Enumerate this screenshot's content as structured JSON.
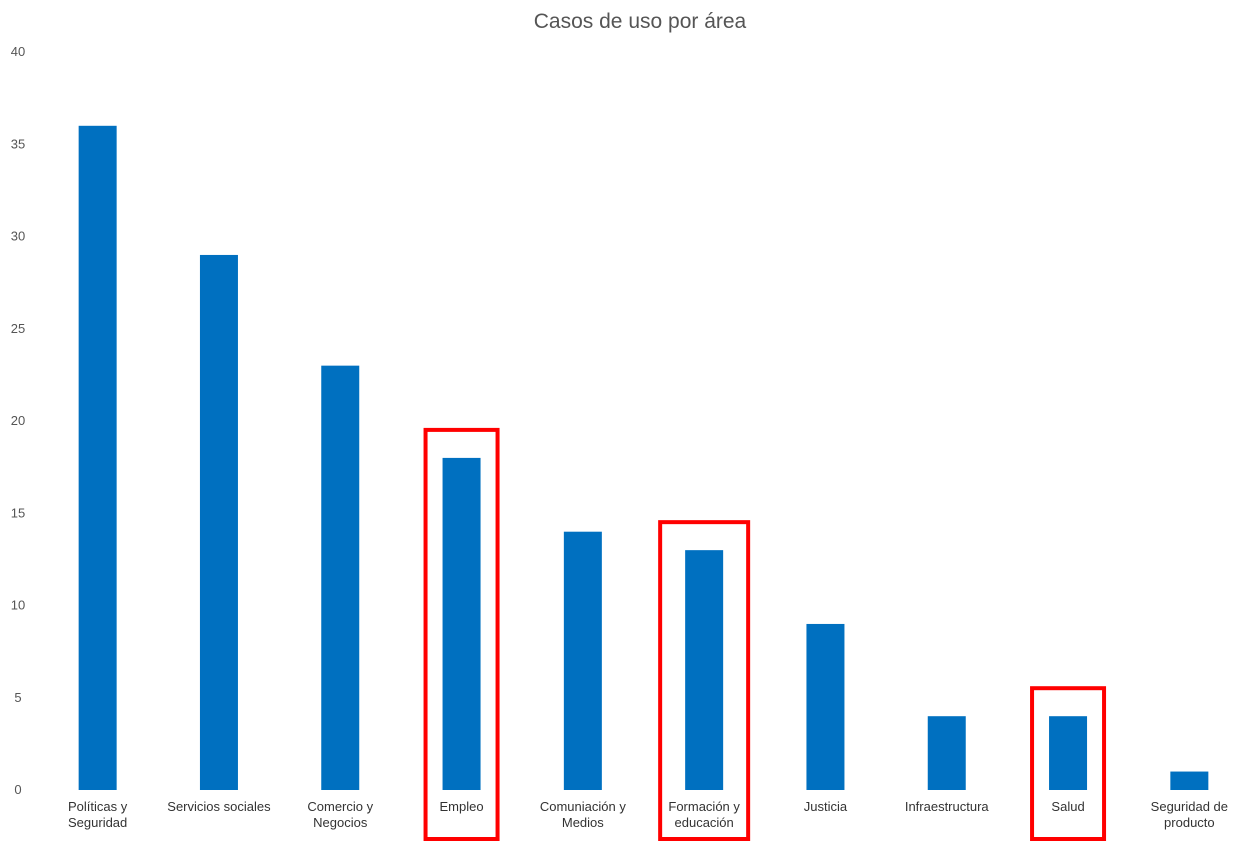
{
  "chart_data": {
    "type": "bar",
    "title": "Casos de uso por área",
    "xlabel": "",
    "ylabel": "",
    "ylim": [
      0,
      40
    ],
    "yticks": [
      0,
      5,
      10,
      15,
      20,
      25,
      30,
      35,
      40
    ],
    "grid": false,
    "legend": "none",
    "bar_color": "#0070C0",
    "highlight_color": "#FF0000",
    "categories": [
      [
        "Políticas y",
        "Seguridad"
      ],
      [
        "Servicios sociales"
      ],
      [
        "Comercio y",
        "Negocios"
      ],
      [
        "Empleo"
      ],
      [
        "Comuniación y",
        "Medios"
      ],
      [
        "Formación y",
        "educación"
      ],
      [
        "Justicia"
      ],
      [
        "Infraestructura"
      ],
      [
        "Salud"
      ],
      [
        "Seguridad de",
        "producto"
      ]
    ],
    "values": [
      36,
      29,
      23,
      18,
      14,
      13,
      9,
      4,
      4,
      1
    ],
    "highlighted_categories": [
      "Empleo",
      "Formación y educación",
      "Salud"
    ]
  }
}
